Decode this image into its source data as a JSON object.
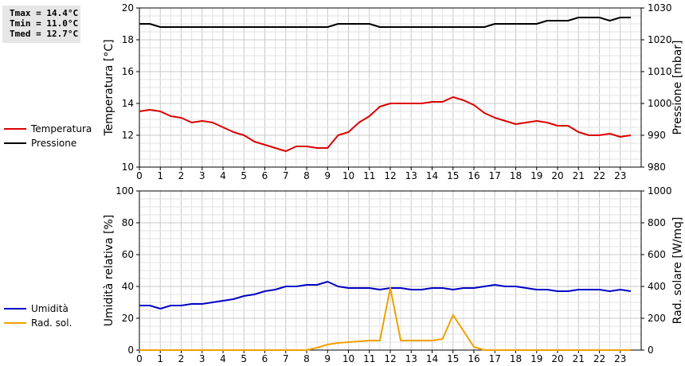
{
  "stats": {
    "tmax": "Tmax = 14.4°C",
    "tmin": "Tmin = 11.0°C",
    "tmed": "Tmed = 12.7°C"
  },
  "legend_top": [
    {
      "label": "Temperatura",
      "color": "#dd0000"
    },
    {
      "label": "Pressione",
      "color": "#000000"
    }
  ],
  "legend_bottom": [
    {
      "label": "Umidità",
      "color": "#0000c8"
    },
    {
      "label": "Rad. sol.",
      "color": "#f0a000"
    }
  ],
  "chart_data": [
    {
      "type": "line",
      "ylabel": "Temperatura [°C]",
      "y2label": "Pressione [mbar]",
      "xlim": [
        0,
        24
      ],
      "ylim": [
        10,
        20
      ],
      "y2lim": [
        980,
        1030
      ],
      "xticks": [
        "0",
        "1",
        "2",
        "3",
        "4",
        "5",
        "6",
        "7",
        "8",
        "9",
        "10",
        "11",
        "12",
        "13",
        "14",
        "15",
        "16",
        "17",
        "18",
        "19",
        "20",
        "21",
        "22",
        "23"
      ],
      "yticks": [
        "10",
        "12",
        "14",
        "16",
        "18",
        "20"
      ],
      "y2ticks": [
        "980",
        "990",
        "1000",
        "1010",
        "1020",
        "1030"
      ],
      "grid": true,
      "series": [
        {
          "name": "Temperatura",
          "axis": "left",
          "color": "#dd0000",
          "x": [
            0,
            0.5,
            1,
            1.5,
            2,
            2.5,
            3,
            3.5,
            4,
            4.5,
            5,
            5.5,
            6,
            6.5,
            7,
            7.5,
            8,
            8.5,
            9,
            9.5,
            10,
            10.5,
            11,
            11.5,
            12,
            12.5,
            13,
            13.5,
            14,
            14.5,
            15,
            15.5,
            16,
            16.5,
            17,
            17.5,
            18,
            18.5,
            19,
            19.5,
            20,
            20.5,
            21,
            21.5,
            22,
            22.5,
            23,
            23.5
          ],
          "values": [
            13.5,
            13.6,
            13.5,
            13.2,
            13.1,
            12.8,
            12.9,
            12.8,
            12.5,
            12.2,
            12.0,
            11.6,
            11.4,
            11.2,
            11.0,
            11.3,
            11.3,
            11.2,
            11.2,
            12.0,
            12.2,
            12.8,
            13.2,
            13.8,
            14.0,
            14.0,
            14.0,
            14.0,
            14.1,
            14.1,
            14.4,
            14.2,
            13.9,
            13.4,
            13.1,
            12.9,
            12.7,
            12.8,
            12.9,
            12.8,
            12.6,
            12.6,
            12.2,
            12.0,
            12.0,
            12.1,
            11.9,
            12.0
          ]
        },
        {
          "name": "Pressione",
          "axis": "right",
          "color": "#000000",
          "x": [
            0,
            0.5,
            1,
            1.5,
            2,
            2.5,
            3,
            3.5,
            4,
            4.5,
            5,
            5.5,
            6,
            6.5,
            7,
            7.5,
            8,
            8.5,
            9,
            9.5,
            10,
            10.5,
            11,
            11.5,
            12,
            12.5,
            13,
            13.5,
            14,
            14.5,
            15,
            15.5,
            16,
            16.5,
            17,
            17.5,
            18,
            18.5,
            19,
            19.5,
            20,
            20.5,
            21,
            21.5,
            22,
            22.5,
            23,
            23.5
          ],
          "values": [
            1025,
            1025,
            1024,
            1024,
            1024,
            1024,
            1024,
            1024,
            1024,
            1024,
            1024,
            1024,
            1024,
            1024,
            1024,
            1024,
            1024,
            1024,
            1024,
            1025,
            1025,
            1025,
            1025,
            1024,
            1024,
            1024,
            1024,
            1024,
            1024,
            1024,
            1024,
            1024,
            1024,
            1024,
            1025,
            1025,
            1025,
            1025,
            1025,
            1026,
            1026,
            1026,
            1027,
            1027,
            1027,
            1026,
            1027,
            1027
          ]
        }
      ]
    },
    {
      "type": "line",
      "ylabel": "Umidità relativa [%]",
      "y2label": "Rad. solare [W/mq]",
      "xlim": [
        0,
        24
      ],
      "ylim": [
        0,
        100
      ],
      "y2lim": [
        0,
        1000
      ],
      "xticks": [
        "0",
        "1",
        "2",
        "3",
        "4",
        "5",
        "6",
        "7",
        "8",
        "9",
        "10",
        "11",
        "12",
        "13",
        "14",
        "15",
        "16",
        "17",
        "18",
        "19",
        "20",
        "21",
        "22",
        "23"
      ],
      "yticks": [
        "0",
        "20",
        "40",
        "60",
        "80",
        "100"
      ],
      "y2ticks": [
        "0",
        "200",
        "400",
        "600",
        "800",
        "1000"
      ],
      "grid": true,
      "series": [
        {
          "name": "Umidità",
          "axis": "left",
          "color": "#0000c8",
          "x": [
            0,
            0.5,
            1,
            1.5,
            2,
            2.5,
            3,
            3.5,
            4,
            4.5,
            5,
            5.5,
            6,
            6.5,
            7,
            7.5,
            8,
            8.5,
            9,
            9.5,
            10,
            10.5,
            11,
            11.5,
            12,
            12.5,
            13,
            13.5,
            14,
            14.5,
            15,
            15.5,
            16,
            16.5,
            17,
            17.5,
            18,
            18.5,
            19,
            19.5,
            20,
            20.5,
            21,
            21.5,
            22,
            22.5,
            23,
            23.5
          ],
          "values": [
            28,
            28,
            26,
            28,
            28,
            29,
            29,
            30,
            31,
            32,
            34,
            35,
            37,
            38,
            40,
            40,
            41,
            41,
            43,
            40,
            39,
            39,
            39,
            38,
            39,
            39,
            38,
            38,
            39,
            39,
            38,
            39,
            39,
            40,
            41,
            40,
            40,
            39,
            38,
            38,
            37,
            37,
            38,
            38,
            38,
            37,
            38,
            37
          ]
        },
        {
          "name": "Rad. sol.",
          "axis": "right",
          "color": "#f0a000",
          "x": [
            0,
            1,
            2,
            3,
            4,
            5,
            6,
            7,
            8,
            8.5,
            9,
            9.5,
            10,
            10.5,
            11,
            11.5,
            12,
            12.5,
            13,
            13.5,
            14,
            14.5,
            15,
            15.5,
            16,
            16.5,
            17,
            18,
            19,
            20,
            21,
            22,
            23,
            23.5
          ],
          "values": [
            0,
            0,
            0,
            0,
            0,
            0,
            0,
            0,
            0,
            15,
            35,
            45,
            50,
            55,
            60,
            60,
            390,
            60,
            60,
            60,
            60,
            70,
            220,
            120,
            20,
            0,
            0,
            0,
            0,
            0,
            0,
            0,
            0,
            0
          ]
        }
      ]
    }
  ]
}
